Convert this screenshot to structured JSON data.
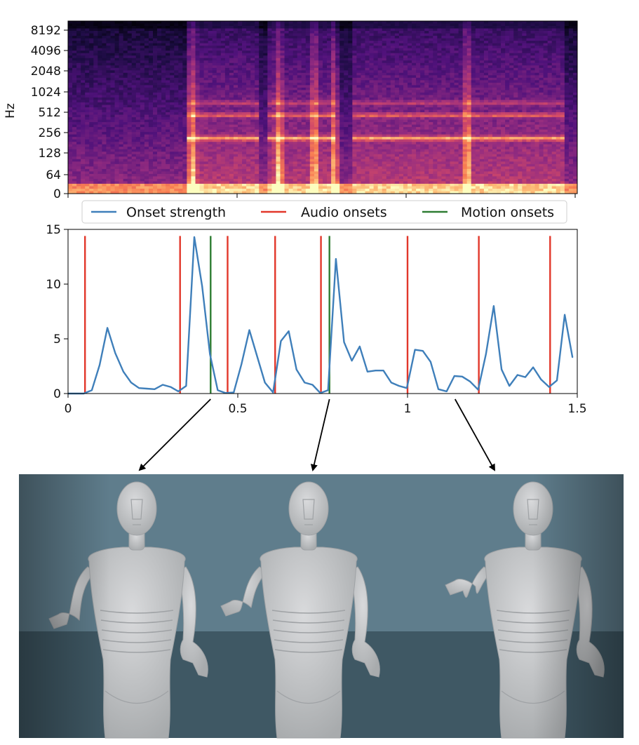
{
  "chart_data": [
    {
      "type": "heatmap",
      "ylabel": "Hz",
      "y_scale": "log",
      "yticks": [
        "0",
        "64",
        "128",
        "256",
        "512",
        "1024",
        "2048",
        "4096",
        "8192"
      ],
      "colormap": "magma",
      "harmonic_bands_hz": [
        210,
        460,
        700
      ]
    },
    {
      "type": "line",
      "xlim": [
        0,
        1.5
      ],
      "ylim": [
        0,
        15
      ],
      "xticks": [
        "0",
        "0.5",
        "1",
        "1.5"
      ],
      "yticks": [
        "0",
        "5",
        "10",
        "15"
      ],
      "legend": {
        "placement": "top",
        "entries": [
          "Onset strength",
          "Audio onsets",
          "Motion onsets"
        ]
      },
      "series": [
        {
          "name": "Onset strength",
          "color": "#3f7fba",
          "x": [
            0,
            0.023,
            0.046,
            0.07,
            0.093,
            0.116,
            0.139,
            0.163,
            0.186,
            0.209,
            0.232,
            0.255,
            0.279,
            0.302,
            0.325,
            0.348,
            0.372,
            0.395,
            0.418,
            0.441,
            0.464,
            0.488,
            0.511,
            0.534,
            0.557,
            0.58,
            0.604,
            0.627,
            0.65,
            0.673,
            0.697,
            0.72,
            0.743,
            0.766,
            0.789,
            0.813,
            0.836,
            0.859,
            0.882,
            0.906,
            0.929,
            0.952,
            0.975,
            0.998,
            1.022,
            1.045,
            1.068,
            1.091,
            1.115,
            1.138,
            1.161,
            1.184,
            1.208,
            1.231,
            1.254,
            1.277,
            1.3,
            1.324,
            1.347,
            1.37,
            1.393,
            1.417,
            1.44,
            1.463,
            1.486
          ],
          "values": [
            0,
            0,
            0,
            0.3,
            2.6,
            6.0,
            3.7,
            2.0,
            1.0,
            0.5,
            0.45,
            0.4,
            0.8,
            0.6,
            0.2,
            0.7,
            14.3,
            9.8,
            3.6,
            0.3,
            0.05,
            0.1,
            2.7,
            5.8,
            3.4,
            1.0,
            0.1,
            4.8,
            5.7,
            2.2,
            1.0,
            0.8,
            0.05,
            0.3,
            12.3,
            4.7,
            3.0,
            4.3,
            2.0,
            2.1,
            2.1,
            1.0,
            0.7,
            0.5,
            4.0,
            3.9,
            2.9,
            0.4,
            0.2,
            1.6,
            1.55,
            1.1,
            0.35,
            3.6,
            8.0,
            2.2,
            0.7,
            1.7,
            1.5,
            2.4,
            1.3,
            0.6,
            1.2,
            7.2,
            3.3
          ]
        },
        {
          "name": "Audio onsets",
          "color": "#e2372a",
          "x": [
            0.05,
            0.33,
            0.47,
            0.61,
            0.745,
            1.0,
            1.21,
            1.42
          ]
        },
        {
          "name": "Motion onsets",
          "color": "#2e7d32",
          "x": [
            0.42,
            0.77
          ]
        }
      ]
    }
  ],
  "scene": {
    "colors": {
      "wall": "#5f7d8c",
      "floor": "#3f5864",
      "figure": "#c7c9cb",
      "shade": "#9fa2a5"
    },
    "arrow_sources_x": [
      0.42,
      0.77,
      1.14
    ]
  }
}
